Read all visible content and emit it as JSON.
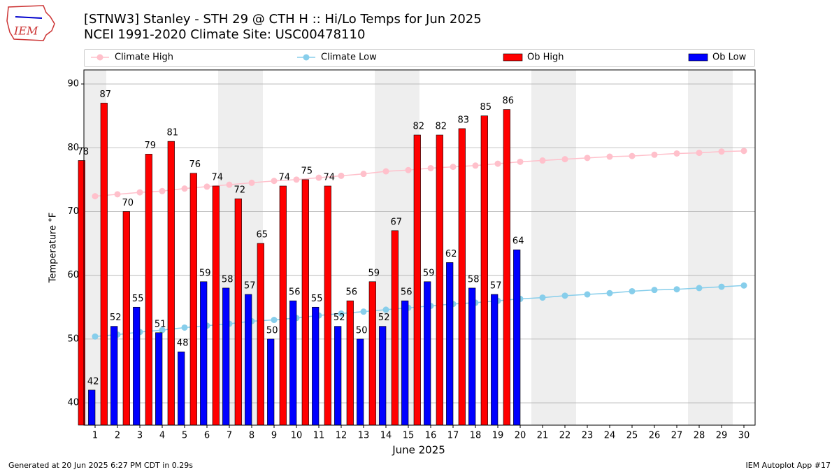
{
  "chart_data": {
    "type": "bar",
    "title": "[STNW3] Stanley - STH 29 @ CTH H :: Hi/Lo Temps for Jun 2025",
    "subtitle": "NCEI 1991-2020 Climate Site: USC00478110",
    "logo_text": "IEM",
    "x_label": "June 2025",
    "y_label": "Temperature °F",
    "footer_left": "Generated at 20 Jun 2025 6:27 PM CDT in 0.29s",
    "footer_right": "IEM Autoplot App #17",
    "x": [
      1,
      2,
      3,
      4,
      5,
      6,
      7,
      8,
      9,
      10,
      11,
      12,
      13,
      14,
      15,
      16,
      17,
      18,
      19,
      20,
      21,
      22,
      23,
      24,
      25,
      26,
      27,
      28,
      29,
      30
    ],
    "xlim": [
      0.5,
      30.5
    ],
    "xticks": [
      1,
      2,
      3,
      4,
      5,
      6,
      7,
      8,
      9,
      10,
      11,
      12,
      13,
      14,
      15,
      16,
      17,
      18,
      19,
      20,
      21,
      22,
      23,
      24,
      25,
      26,
      27,
      28,
      29,
      30
    ],
    "ylim": [
      36.5,
      92.2
    ],
    "yticks": [
      40,
      50,
      60,
      70,
      80,
      90
    ],
    "grid": true,
    "shaded_days": [
      1,
      7,
      8,
      14,
      15,
      21,
      22,
      28,
      29
    ],
    "shade_color": "#eeeeee",
    "series": [
      {
        "name": "Climate High",
        "type": "line",
        "color": "#ffc0cb",
        "values": [
          72.4,
          72.7,
          73.0,
          73.2,
          73.6,
          73.9,
          74.2,
          74.5,
          74.8,
          75.0,
          75.3,
          75.6,
          75.9,
          76.3,
          76.5,
          76.8,
          77.0,
          77.2,
          77.5,
          77.8,
          78.0,
          78.2,
          78.4,
          78.6,
          78.7,
          78.9,
          79.1,
          79.2,
          79.4,
          79.5
        ]
      },
      {
        "name": "Climate Low",
        "type": "line",
        "color": "#87ceeb",
        "values": [
          50.4,
          50.7,
          51.1,
          51.4,
          51.8,
          52.1,
          52.4,
          52.8,
          53.0,
          53.3,
          53.7,
          54.0,
          54.3,
          54.6,
          54.9,
          55.2,
          55.5,
          55.7,
          56.0,
          56.3,
          56.5,
          56.8,
          57.0,
          57.2,
          57.5,
          57.7,
          57.8,
          58.0,
          58.2,
          58.4
        ]
      },
      {
        "name": "Ob High",
        "type": "bar",
        "color": "#ff0000",
        "offset": -1,
        "values": [
          78,
          87,
          70,
          79,
          81,
          76,
          74,
          72,
          65,
          74,
          75,
          74,
          56,
          59,
          67,
          82,
          82,
          83,
          85,
          86,
          null,
          null,
          null,
          null,
          null,
          null,
          null,
          null,
          null,
          null
        ]
      },
      {
        "name": "Ob Low",
        "type": "bar",
        "color": "#0000ff",
        "offset": 0,
        "values": [
          42,
          52,
          55,
          51,
          48,
          59,
          58,
          57,
          50,
          56,
          55,
          52,
          50,
          52,
          56,
          59,
          62,
          58,
          57,
          64,
          null,
          null,
          null,
          null,
          null,
          null,
          null,
          null,
          null,
          null
        ]
      }
    ]
  }
}
